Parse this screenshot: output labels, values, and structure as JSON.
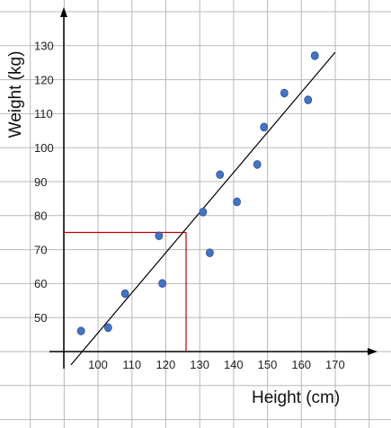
{
  "chart_data": {
    "type": "scatter",
    "xlabel": "Height (cm)",
    "ylabel": "Weight (kg)",
    "xlim": [
      90,
      173
    ],
    "ylim": [
      40,
      135
    ],
    "x_ticks": [
      100,
      110,
      120,
      130,
      140,
      150,
      160,
      170
    ],
    "y_ticks": [
      50,
      60,
      70,
      80,
      90,
      100,
      110,
      120,
      130
    ],
    "grid": true,
    "points": [
      {
        "x": 95,
        "y": 46
      },
      {
        "x": 103,
        "y": 47
      },
      {
        "x": 108,
        "y": 57
      },
      {
        "x": 118,
        "y": 74
      },
      {
        "x": 119,
        "y": 60
      },
      {
        "x": 131,
        "y": 81
      },
      {
        "x": 133,
        "y": 69
      },
      {
        "x": 136,
        "y": 92
      },
      {
        "x": 141,
        "y": 84
      },
      {
        "x": 147,
        "y": 95
      },
      {
        "x": 149,
        "y": 106
      },
      {
        "x": 155,
        "y": 116
      },
      {
        "x": 162,
        "y": 114
      },
      {
        "x": 164,
        "y": 127
      }
    ],
    "trendline": [
      {
        "x": 92,
        "y": 36
      },
      {
        "x": 170,
        "y": 128
      }
    ],
    "reference_lines": [
      {
        "x": 126,
        "y": 75
      }
    ],
    "colors": {
      "point": "#4472c4",
      "point_edge": "#2f528f",
      "trendline": "#000000",
      "reference": "#c00000",
      "grid": "#b8b8b8"
    }
  }
}
